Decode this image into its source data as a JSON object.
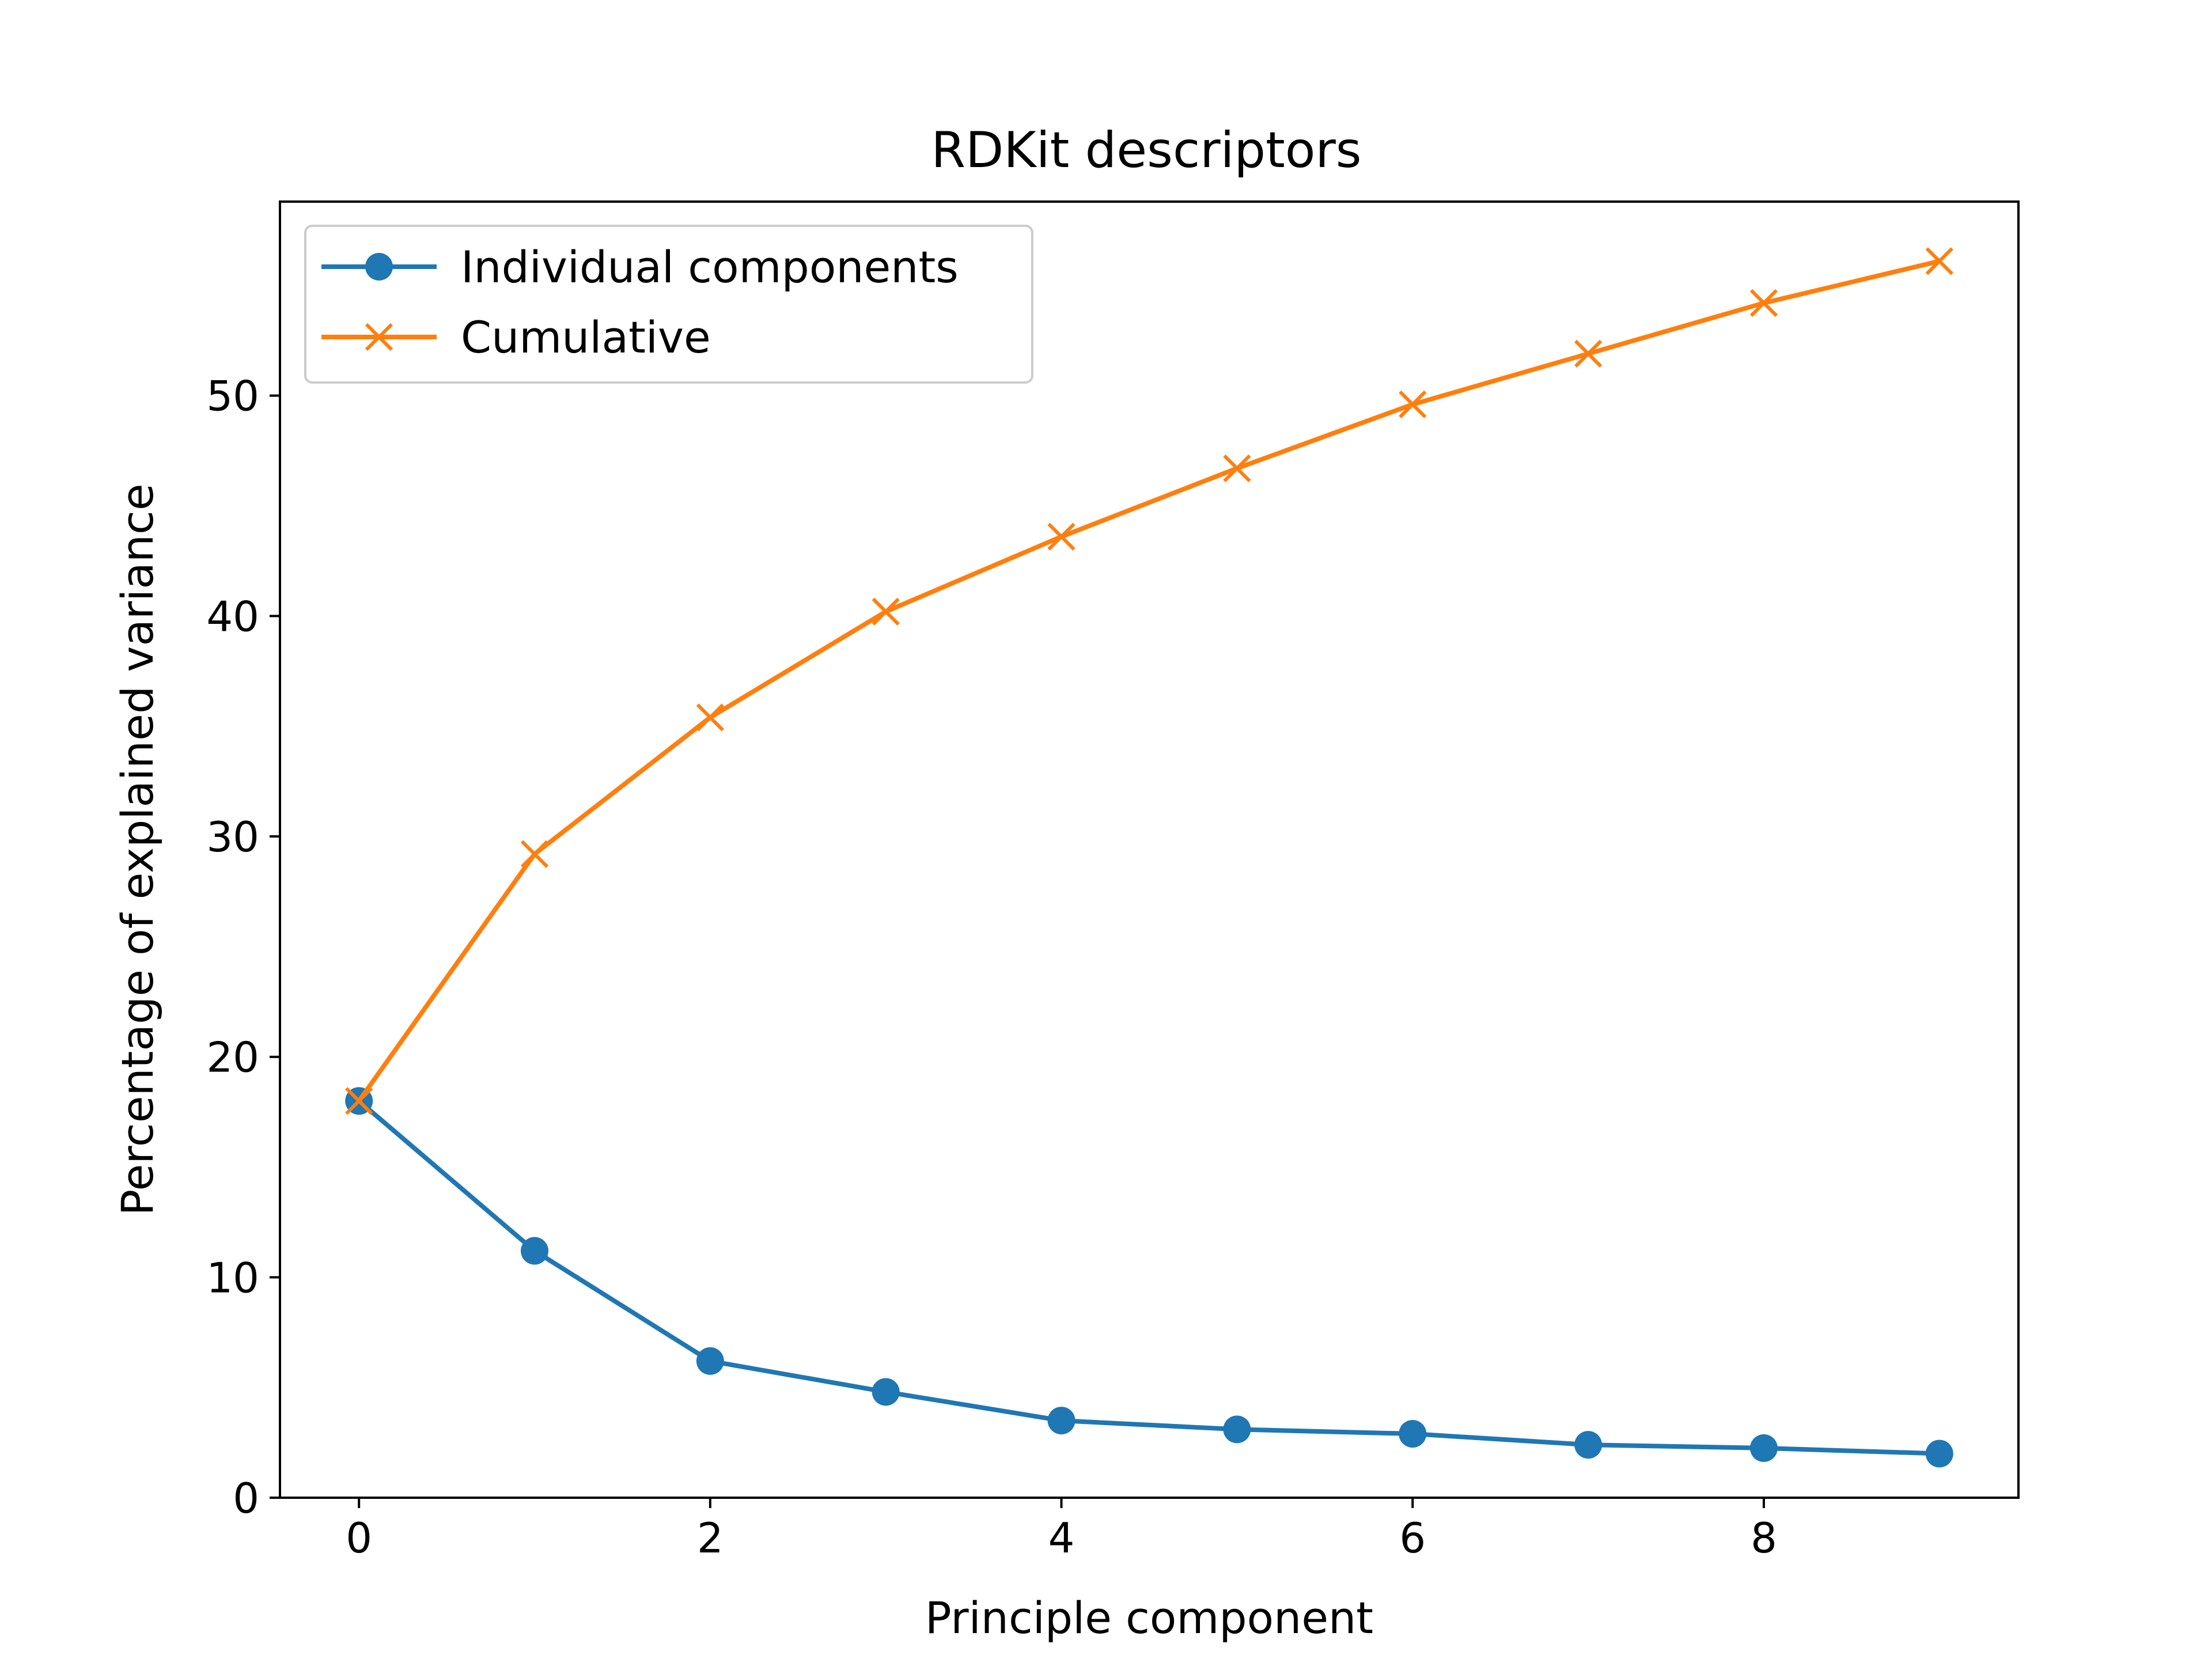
{
  "chart_data": {
    "type": "line",
    "title": "RDKit descriptors",
    "xlabel": "Principle component",
    "ylabel": "Percentage of explained variance",
    "x": [
      0,
      1,
      2,
      3,
      4,
      5,
      6,
      7,
      8,
      9
    ],
    "xlim": [
      -0.45,
      9.45
    ],
    "ylim": [
      0,
      58.8
    ],
    "xticks": [
      0,
      2,
      4,
      6,
      8
    ],
    "yticks": [
      0,
      10,
      20,
      30,
      40,
      50
    ],
    "grid": false,
    "legend_position": "upper-left",
    "series": [
      {
        "name": "Individual components",
        "marker": "circle",
        "color": "#1f77b4",
        "values": [
          18.0,
          11.2,
          6.2,
          4.8,
          3.5,
          3.1,
          2.9,
          2.4,
          2.25,
          2.0
        ]
      },
      {
        "name": "Cumulative",
        "marker": "x",
        "color": "#ff7f0e",
        "values": [
          18.0,
          29.2,
          35.4,
          40.2,
          43.6,
          46.7,
          49.6,
          51.9,
          54.2,
          56.1
        ]
      }
    ]
  }
}
